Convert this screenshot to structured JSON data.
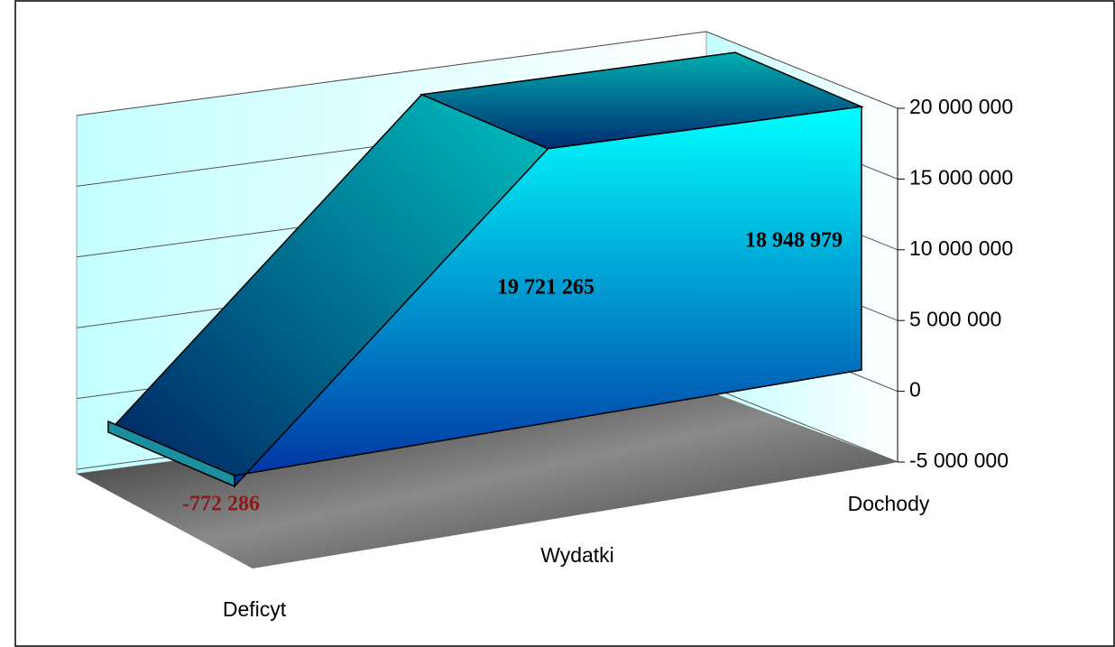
{
  "chart_data": {
    "type": "area",
    "categories": [
      "Deficyt",
      "Wydatki",
      "Dochody"
    ],
    "values": [
      -772286,
      19721265,
      18948979
    ],
    "value_labels": [
      "-772 286",
      "19 721 265",
      "18 948 979"
    ],
    "color": "#00ffff",
    "ylim": [
      -5000000,
      20000000
    ],
    "yticks": [
      {
        "value": -5000000,
        "label": "-5 000 000"
      },
      0,
      {
        "value": 5000000,
        "label": "5 000 000"
      },
      {
        "value": 10000000,
        "label": "10 000 000"
      },
      {
        "value": 15000000,
        "label": "15 000 000"
      },
      {
        "value": 20000000,
        "label": "20 000 000"
      }
    ],
    "grid": true
  }
}
